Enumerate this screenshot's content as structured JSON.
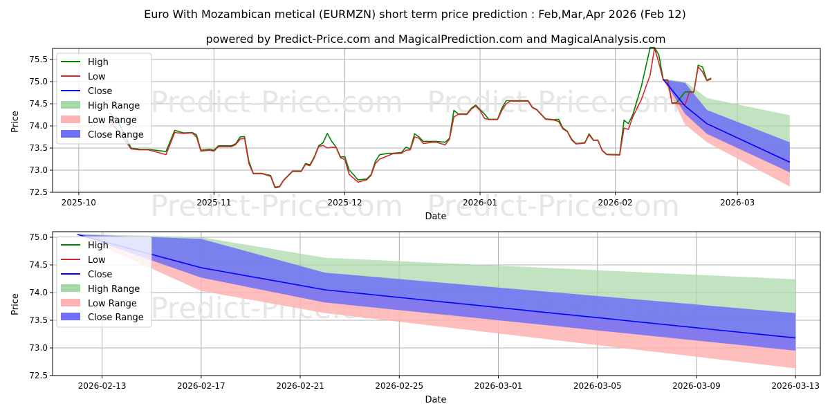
{
  "titles": {
    "main": "Euro With Mozambican metical (EURMZN) short term price prediction : Feb,Mar,Apr 2026 (Feb 12)",
    "sub": "powered by Predict-Price.com and MagicalPrediction.com and MagicalAnalysis.com"
  },
  "watermark": "Predict-Price.com",
  "colors": {
    "high": "#008000",
    "low": "#d62728",
    "close": "#0000ff",
    "high_range": "#a6d7a6",
    "low_range": "#ffb3b3",
    "close_range": "#6f6ff7"
  },
  "legend": {
    "high": "High",
    "low": "Low",
    "close": "Close",
    "high_range": "High Range",
    "low_range": "Low Range",
    "close_range": "Close Range"
  },
  "chart_data": [
    {
      "type": "line",
      "panel": "top",
      "xlabel": "Date",
      "ylabel": "Price",
      "grid": true,
      "legend_position": "top-left",
      "xlim": [
        "2025-09-25",
        "2026-03-20"
      ],
      "ylim": [
        72.5,
        75.75
      ],
      "x_ticks": [
        "2025-10-01",
        "2025-11-01",
        "2025-12-01",
        "2026-01-01",
        "2026-02-01",
        "2026-03-01"
      ],
      "x_tick_labels": [
        "2025-10",
        "2025-11",
        "2025-12",
        "2026-01",
        "2026-02",
        "2026-03"
      ],
      "y_ticks": [
        72.5,
        73.0,
        73.5,
        74.0,
        74.5,
        75.0,
        75.5
      ],
      "y_tick_labels": [
        "72.5",
        "73.0",
        "73.5",
        "74.0",
        "74.5",
        "75.0",
        "75.5"
      ],
      "history": [
        {
          "x": "2025-10-08",
          "high": 74.3,
          "low": 74.2
        },
        {
          "x": "2025-10-09",
          "high": 74.2,
          "low": 74.0
        },
        {
          "x": "2025-10-10",
          "high": 74.1,
          "low": 73.9
        },
        {
          "x": "2025-10-13",
          "high": 73.5,
          "low": 73.48
        },
        {
          "x": "2025-10-15",
          "high": 73.47,
          "low": 73.46
        },
        {
          "x": "2025-10-17",
          "high": 73.47,
          "low": 73.46
        },
        {
          "x": "2025-10-21",
          "high": 73.42,
          "low": 73.35
        },
        {
          "x": "2025-10-23",
          "high": 73.9,
          "low": 73.85
        },
        {
          "x": "2025-10-25",
          "high": 73.84,
          "low": 73.83
        },
        {
          "x": "2025-10-27",
          "high": 73.85,
          "low": 73.84
        },
        {
          "x": "2025-10-28",
          "high": 73.8,
          "low": 73.75
        },
        {
          "x": "2025-10-29",
          "high": 73.45,
          "low": 73.43
        },
        {
          "x": "2025-10-31",
          "high": 73.47,
          "low": 73.45
        },
        {
          "x": "2025-11-01",
          "high": 73.45,
          "low": 73.43
        },
        {
          "x": "2025-11-02",
          "high": 73.55,
          "low": 73.53
        },
        {
          "x": "2025-11-04",
          "high": 73.55,
          "low": 73.53
        },
        {
          "x": "2025-11-05",
          "high": 73.55,
          "low": 73.53
        },
        {
          "x": "2025-11-06",
          "high": 73.6,
          "low": 73.58
        },
        {
          "x": "2025-11-07",
          "high": 73.75,
          "low": 73.7
        },
        {
          "x": "2025-11-08",
          "high": 73.76,
          "low": 73.72
        },
        {
          "x": "2025-11-09",
          "high": 73.2,
          "low": 73.15
        },
        {
          "x": "2025-11-10",
          "high": 72.93,
          "low": 72.92
        },
        {
          "x": "2025-11-12",
          "high": 72.93,
          "low": 72.92
        },
        {
          "x": "2025-11-13",
          "high": 72.9,
          "low": 72.89
        },
        {
          "x": "2025-11-14",
          "high": 72.88,
          "low": 72.86
        },
        {
          "x": "2025-11-15",
          "high": 72.62,
          "low": 72.6
        },
        {
          "x": "2025-11-16",
          "high": 72.63,
          "low": 72.62
        },
        {
          "x": "2025-11-17",
          "high": 72.78,
          "low": 72.77
        },
        {
          "x": "2025-11-19",
          "high": 72.98,
          "low": 72.97
        },
        {
          "x": "2025-11-21",
          "high": 72.98,
          "low": 72.97
        },
        {
          "x": "2025-11-22",
          "high": 73.15,
          "low": 73.13
        },
        {
          "x": "2025-11-23",
          "high": 73.12,
          "low": 73.1
        },
        {
          "x": "2025-11-24",
          "high": 73.3,
          "low": 73.28
        },
        {
          "x": "2025-11-25",
          "high": 73.55,
          "low": 73.53
        },
        {
          "x": "2025-11-26",
          "high": 73.62,
          "low": 73.56
        },
        {
          "x": "2025-11-27",
          "high": 73.83,
          "low": 73.5
        },
        {
          "x": "2025-11-28",
          "high": 73.65,
          "low": 73.52
        },
        {
          "x": "2025-11-29",
          "high": 73.52,
          "low": 73.51
        },
        {
          "x": "2025-11-30",
          "high": 73.3,
          "low": 73.28
        },
        {
          "x": "2025-12-01",
          "high": 73.3,
          "low": 73.24
        },
        {
          "x": "2025-12-02",
          "high": 73.0,
          "low": 72.9
        },
        {
          "x": "2025-12-03",
          "high": 72.9,
          "low": 72.82
        },
        {
          "x": "2025-12-04",
          "high": 72.78,
          "low": 72.73
        },
        {
          "x": "2025-12-06",
          "high": 72.8,
          "low": 72.78
        },
        {
          "x": "2025-12-07",
          "high": 72.9,
          "low": 72.88
        },
        {
          "x": "2025-12-08",
          "high": 73.2,
          "low": 73.15
        },
        {
          "x": "2025-12-09",
          "high": 73.35,
          "low": 73.25
        },
        {
          "x": "2025-12-11",
          "high": 73.38,
          "low": 73.33
        },
        {
          "x": "2025-12-12",
          "high": 73.38,
          "low": 73.37
        },
        {
          "x": "2025-12-14",
          "high": 73.4,
          "low": 73.38
        },
        {
          "x": "2025-12-15",
          "high": 73.52,
          "low": 73.45
        },
        {
          "x": "2025-12-16",
          "high": 73.48,
          "low": 73.46
        },
        {
          "x": "2025-12-17",
          "high": 73.82,
          "low": 73.75
        },
        {
          "x": "2025-12-18",
          "high": 73.75,
          "low": 73.72
        },
        {
          "x": "2025-12-19",
          "high": 73.65,
          "low": 73.6
        },
        {
          "x": "2025-12-21",
          "high": 73.65,
          "low": 73.63
        },
        {
          "x": "2025-12-22",
          "high": 73.65,
          "low": 73.63
        },
        {
          "x": "2025-12-24",
          "high": 73.63,
          "low": 73.57
        },
        {
          "x": "2025-12-25",
          "high": 73.72,
          "low": 73.7
        },
        {
          "x": "2025-12-26",
          "high": 74.35,
          "low": 74.2
        },
        {
          "x": "2025-12-27",
          "high": 74.27,
          "low": 74.26
        },
        {
          "x": "2025-12-29",
          "high": 74.27,
          "low": 74.26
        },
        {
          "x": "2025-12-30",
          "high": 74.4,
          "low": 74.38
        },
        {
          "x": "2025-12-31",
          "high": 74.47,
          "low": 74.45
        },
        {
          "x": "2026-01-01",
          "high": 74.37,
          "low": 74.35
        },
        {
          "x": "2026-01-02",
          "high": 74.27,
          "low": 74.17
        },
        {
          "x": "2026-01-03",
          "high": 74.15,
          "low": 74.14
        },
        {
          "x": "2026-01-05",
          "high": 74.15,
          "low": 74.14
        },
        {
          "x": "2026-01-06",
          "high": 74.4,
          "low": 74.35
        },
        {
          "x": "2026-01-07",
          "high": 74.57,
          "low": 74.5
        },
        {
          "x": "2026-01-08",
          "high": 74.57,
          "low": 74.56
        },
        {
          "x": "2026-01-12",
          "high": 74.57,
          "low": 74.56
        },
        {
          "x": "2026-01-13",
          "high": 74.42,
          "low": 74.41
        },
        {
          "x": "2026-01-14",
          "high": 74.37,
          "low": 74.36
        },
        {
          "x": "2026-01-16",
          "high": 74.16,
          "low": 74.15
        },
        {
          "x": "2026-01-18",
          "high": 74.14,
          "low": 74.13
        },
        {
          "x": "2026-01-19",
          "high": 74.15,
          "low": 74.1
        },
        {
          "x": "2026-01-20",
          "high": 73.95,
          "low": 73.93
        },
        {
          "x": "2026-01-21",
          "high": 73.88,
          "low": 73.87
        },
        {
          "x": "2026-01-22",
          "high": 73.7,
          "low": 73.68
        },
        {
          "x": "2026-01-23",
          "high": 73.6,
          "low": 73.59
        },
        {
          "x": "2026-01-25",
          "high": 73.62,
          "low": 73.61
        },
        {
          "x": "2026-01-26",
          "high": 73.82,
          "low": 73.8
        },
        {
          "x": "2026-01-27",
          "high": 73.68,
          "low": 73.67
        },
        {
          "x": "2026-01-28",
          "high": 73.68,
          "low": 73.67
        },
        {
          "x": "2026-01-29",
          "high": 73.45,
          "low": 73.44
        },
        {
          "x": "2026-01-30",
          "high": 73.36,
          "low": 73.35
        },
        {
          "x": "2026-02-02",
          "high": 73.35,
          "low": 73.34
        },
        {
          "x": "2026-02-03",
          "high": 74.13,
          "low": 73.95
        },
        {
          "x": "2026-02-04",
          "high": 74.05,
          "low": 73.92
        },
        {
          "x": "2026-02-05",
          "high": 74.25,
          "low": 74.2
        },
        {
          "x": "2026-02-07",
          "high": 74.9,
          "low": 74.6
        },
        {
          "x": "2026-02-09",
          "high": 75.77,
          "low": 75.15
        },
        {
          "x": "2026-02-10",
          "high": 75.77,
          "low": 75.76
        },
        {
          "x": "2026-02-11",
          "high": 75.6,
          "low": 75.42
        },
        {
          "x": "2026-02-12",
          "high": 75.04,
          "low": 75.03
        },
        {
          "x": "2026-02-13",
          "high": 75.04,
          "low": 75.03
        },
        {
          "x": "2026-02-14",
          "high": 74.52,
          "low": 74.51
        },
        {
          "x": "2026-02-15",
          "high": 74.52,
          "low": 74.51
        },
        {
          "x": "2026-02-17",
          "high": 74.77,
          "low": 74.48
        },
        {
          "x": "2026-02-18",
          "high": 74.77,
          "low": 74.76
        },
        {
          "x": "2026-02-19",
          "high": 74.77,
          "low": 74.76
        },
        {
          "x": "2026-02-20",
          "high": 75.37,
          "low": 75.33
        },
        {
          "x": "2026-02-21",
          "high": 75.33,
          "low": 75.22
        },
        {
          "x": "2026-02-22",
          "high": 75.03,
          "low": 75.02
        },
        {
          "x": "2026-02-23",
          "high": 75.08,
          "low": 75.06
        }
      ],
      "forecast": {
        "x": [
          "2026-02-12",
          "2026-02-17",
          "2026-02-22",
          "2026-03-13"
        ],
        "close": [
          75.05,
          74.45,
          74.05,
          73.18
        ],
        "close_upper": [
          75.05,
          74.97,
          74.36,
          73.63
        ],
        "close_lower": [
          75.05,
          74.27,
          73.82,
          72.95
        ],
        "high_upper": [
          75.06,
          75.0,
          74.63,
          74.24
        ],
        "low_lower": [
          75.04,
          74.03,
          73.63,
          72.63
        ]
      }
    },
    {
      "type": "line",
      "panel": "bottom",
      "xlabel": "Date",
      "ylabel": "Price",
      "grid": true,
      "legend_position": "top-left",
      "xlim": [
        "2026-02-11",
        "2026-03-14"
      ],
      "ylim": [
        72.5,
        75.1
      ],
      "x_ticks": [
        "2026-02-13",
        "2026-02-17",
        "2026-02-21",
        "2026-02-25",
        "2026-03-01",
        "2026-03-05",
        "2026-03-09",
        "2026-03-13"
      ],
      "x_tick_labels": [
        "2026-02-13",
        "2026-02-17",
        "2026-02-21",
        "2026-02-25",
        "2026-03-01",
        "2026-03-05",
        "2026-03-09",
        "2026-03-13"
      ],
      "y_ticks": [
        72.5,
        73.0,
        73.5,
        74.0,
        74.5,
        75.0
      ],
      "y_tick_labels": [
        "72.5",
        "73.0",
        "73.5",
        "74.0",
        "74.5",
        "75.0"
      ],
      "forecast": {
        "x": [
          "2026-02-12",
          "2026-02-17",
          "2026-02-22",
          "2026-03-13"
        ],
        "close": [
          75.05,
          74.45,
          74.05,
          73.18
        ],
        "close_upper": [
          75.05,
          74.97,
          74.36,
          73.63
        ],
        "close_lower": [
          75.05,
          74.27,
          73.82,
          72.95
        ],
        "high_upper": [
          75.06,
          75.0,
          74.63,
          74.24
        ],
        "low_lower": [
          75.04,
          74.03,
          73.63,
          72.63
        ]
      }
    }
  ]
}
